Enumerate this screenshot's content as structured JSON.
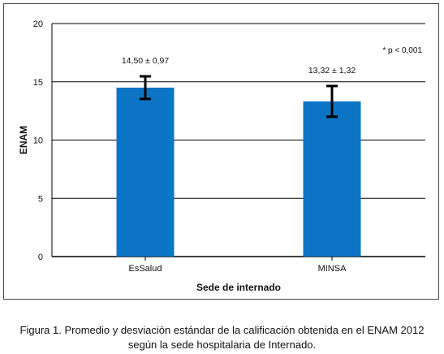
{
  "chart_data": {
    "type": "bar",
    "categories": [
      "EsSalud",
      "MINSA"
    ],
    "values": [
      14.5,
      13.32
    ],
    "errors": [
      0.97,
      1.32
    ],
    "value_labels": [
      "14,50 ± 0,97",
      "13,32 ± 1,32"
    ],
    "xlabel": "Sede de internado",
    "ylabel": "ENAM",
    "ylim": [
      0,
      20
    ],
    "yticks": [
      0,
      5,
      10,
      15,
      20
    ],
    "annotation": "* p < 0,001",
    "grid": true,
    "bar_color": "#0b74c4"
  },
  "caption": {
    "line1": "Figura 1. Promedio y desviación estándar de la calificación obtenida en el ENAM 2012",
    "line2": "según la sede hospitalaria de Internado."
  }
}
